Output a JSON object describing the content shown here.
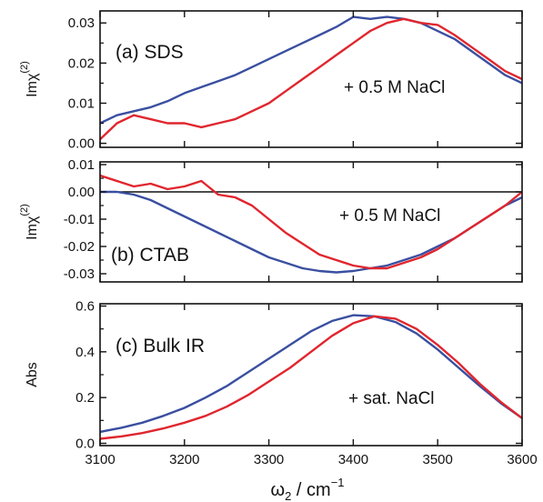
{
  "colors": {
    "blue": "#3a4fa0",
    "red": "#e0262e",
    "axis": "#111111"
  },
  "xaxis": {
    "label_main": "ω",
    "label_sub": "2",
    "label_unit": " / cm",
    "label_sup": "−1",
    "ticks": [
      "3100",
      "3200",
      "3300",
      "3400",
      "3500",
      "3600"
    ]
  },
  "chart_data": [
    {
      "type": "line",
      "panel_label": "(a) SDS",
      "annotation": "+ 0.5 M NaCl",
      "ylabel": "Imχ",
      "ylabel_sup": "(2)",
      "xlim": [
        3100,
        3600
      ],
      "ylim": [
        -0.001,
        0.033
      ],
      "yticks": [
        "0.00",
        "0.01",
        "0.02",
        "0.03"
      ],
      "ytick_values": [
        0.0,
        0.01,
        0.02,
        0.03
      ],
      "zero_line": false,
      "series": [
        {
          "color_key": "blue",
          "x": [
            3100,
            3120,
            3140,
            3160,
            3180,
            3200,
            3220,
            3240,
            3260,
            3280,
            3300,
            3320,
            3340,
            3360,
            3380,
            3400,
            3420,
            3440,
            3460,
            3480,
            3500,
            3520,
            3540,
            3560,
            3580,
            3600
          ],
          "y": [
            0.005,
            0.007,
            0.008,
            0.009,
            0.0105,
            0.0125,
            0.014,
            0.0155,
            0.017,
            0.019,
            0.021,
            0.023,
            0.025,
            0.027,
            0.029,
            0.0315,
            0.031,
            0.0315,
            0.031,
            0.03,
            0.028,
            0.026,
            0.023,
            0.02,
            0.017,
            0.015
          ]
        },
        {
          "color_key": "red",
          "x": [
            3100,
            3120,
            3140,
            3160,
            3180,
            3200,
            3220,
            3240,
            3260,
            3280,
            3300,
            3320,
            3340,
            3360,
            3380,
            3400,
            3420,
            3440,
            3460,
            3480,
            3500,
            3520,
            3540,
            3560,
            3580,
            3600
          ],
          "y": [
            0.001,
            0.005,
            0.007,
            0.006,
            0.005,
            0.005,
            0.004,
            0.005,
            0.006,
            0.008,
            0.01,
            0.013,
            0.016,
            0.019,
            0.022,
            0.025,
            0.028,
            0.03,
            0.031,
            0.03,
            0.0295,
            0.027,
            0.024,
            0.021,
            0.018,
            0.016
          ]
        }
      ]
    },
    {
      "type": "line",
      "panel_label": "(b) CTAB",
      "annotation": "+ 0.5 M NaCl",
      "ylabel": "Imχ",
      "ylabel_sup": "(2)",
      "xlim": [
        3100,
        3600
      ],
      "ylim": [
        -0.033,
        0.011
      ],
      "yticks": [
        "0.01",
        "0.00",
        "-0.01",
        "-0.02",
        "-0.03"
      ],
      "ytick_values": [
        0.01,
        0.0,
        -0.01,
        -0.02,
        -0.03
      ],
      "zero_line": true,
      "series": [
        {
          "color_key": "blue",
          "x": [
            3100,
            3120,
            3140,
            3160,
            3180,
            3200,
            3220,
            3240,
            3260,
            3280,
            3300,
            3320,
            3340,
            3360,
            3380,
            3400,
            3420,
            3440,
            3460,
            3480,
            3500,
            3520,
            3540,
            3560,
            3580,
            3600
          ],
          "y": [
            0.0,
            0.0,
            -0.001,
            -0.003,
            -0.006,
            -0.009,
            -0.012,
            -0.015,
            -0.018,
            -0.021,
            -0.024,
            -0.026,
            -0.028,
            -0.029,
            -0.0295,
            -0.029,
            -0.028,
            -0.027,
            -0.025,
            -0.023,
            -0.02,
            -0.017,
            -0.013,
            -0.009,
            -0.005,
            -0.002
          ]
        },
        {
          "color_key": "red",
          "x": [
            3100,
            3120,
            3140,
            3160,
            3180,
            3200,
            3220,
            3240,
            3260,
            3280,
            3300,
            3320,
            3340,
            3360,
            3380,
            3400,
            3420,
            3440,
            3460,
            3480,
            3500,
            3520,
            3540,
            3560,
            3580,
            3600
          ],
          "y": [
            0.006,
            0.004,
            0.002,
            0.003,
            0.001,
            0.002,
            0.004,
            -0.001,
            -0.002,
            -0.005,
            -0.01,
            -0.015,
            -0.019,
            -0.023,
            -0.025,
            -0.027,
            -0.028,
            -0.028,
            -0.026,
            -0.024,
            -0.021,
            -0.017,
            -0.013,
            -0.009,
            -0.005,
            0.0
          ]
        }
      ]
    },
    {
      "type": "line",
      "panel_label": "(c) Bulk IR",
      "annotation": "+ sat. NaCl",
      "ylabel": "Abs",
      "ylabel_sup": "",
      "xlim": [
        3100,
        3600
      ],
      "ylim": [
        -0.01,
        0.61
      ],
      "yticks": [
        "0.0",
        "0.2",
        "0.4",
        "0.6"
      ],
      "ytick_values": [
        0.0,
        0.2,
        0.4,
        0.6
      ],
      "zero_line": false,
      "series": [
        {
          "color_key": "blue",
          "x": [
            3100,
            3125,
            3150,
            3175,
            3200,
            3225,
            3250,
            3275,
            3300,
            3325,
            3350,
            3375,
            3400,
            3425,
            3450,
            3475,
            3500,
            3525,
            3550,
            3575,
            3600
          ],
          "y": [
            0.05,
            0.068,
            0.09,
            0.12,
            0.155,
            0.2,
            0.25,
            0.31,
            0.37,
            0.43,
            0.49,
            0.535,
            0.56,
            0.555,
            0.53,
            0.48,
            0.41,
            0.33,
            0.25,
            0.175,
            0.11
          ]
        },
        {
          "color_key": "red",
          "x": [
            3100,
            3125,
            3150,
            3175,
            3200,
            3225,
            3250,
            3275,
            3300,
            3325,
            3350,
            3375,
            3400,
            3425,
            3450,
            3475,
            3500,
            3525,
            3550,
            3575,
            3600
          ],
          "y": [
            0.02,
            0.03,
            0.045,
            0.065,
            0.09,
            0.12,
            0.16,
            0.21,
            0.27,
            0.33,
            0.4,
            0.47,
            0.525,
            0.555,
            0.545,
            0.5,
            0.43,
            0.35,
            0.26,
            0.18,
            0.11
          ]
        }
      ]
    }
  ]
}
